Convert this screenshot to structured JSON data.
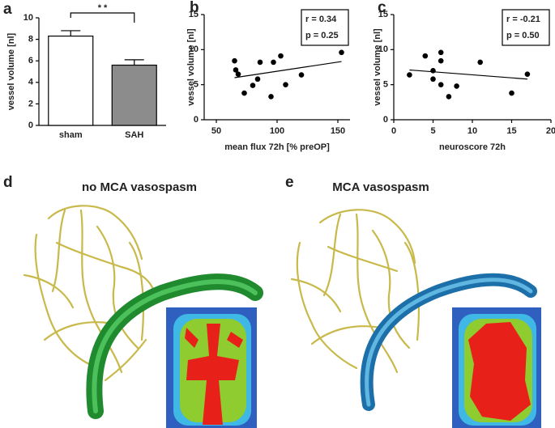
{
  "chart_data": [
    {
      "type": "bar",
      "panel": "a",
      "ylabel": "vessel volume [nl]",
      "categories": [
        "sham",
        "SAH"
      ],
      "values": [
        8.3,
        5.6
      ],
      "errors": [
        0.5,
        0.5
      ],
      "colors": [
        "#ffffff",
        "#8c8c8c"
      ],
      "ylim": [
        0,
        10
      ],
      "yticks": [
        0,
        2,
        4,
        6,
        8,
        10
      ],
      "annotation": "* *"
    },
    {
      "type": "scatter",
      "panel": "b",
      "ylabel": "vessel volume [nl]",
      "xlabel": "mean flux 72h [% preOP]",
      "x": [
        65,
        66,
        68,
        73,
        80,
        84,
        86,
        95,
        97,
        103,
        107,
        120,
        153
      ],
      "y": [
        8.4,
        7.1,
        6.5,
        3.8,
        4.9,
        5.8,
        8.2,
        3.3,
        8.2,
        9.1,
        5.0,
        6.4,
        9.6
      ],
      "color": "#000000",
      "trend_line": {
        "x": [
          65,
          153
        ],
        "y": [
          6.0,
          8.3
        ]
      },
      "stats": [
        "r = 0.34",
        "p = 0.25"
      ],
      "xlim": [
        40,
        160
      ],
      "xticks": [
        50,
        100,
        150
      ],
      "ylim": [
        0,
        15
      ],
      "yticks": [
        0,
        5,
        10,
        15
      ]
    },
    {
      "type": "scatter",
      "panel": "c",
      "ylabel": "vessel volume [nl]",
      "xlabel": "neuroscore 72h",
      "x": [
        2,
        4,
        5,
        5,
        6,
        6,
        6,
        7,
        8,
        11,
        15,
        17
      ],
      "y": [
        6.4,
        9.1,
        7.0,
        5.8,
        9.6,
        8.4,
        5.0,
        3.3,
        4.8,
        8.2,
        3.8,
        6.5
      ],
      "color": "#000000",
      "trend_line": {
        "x": [
          2,
          17
        ],
        "y": [
          7.1,
          5.8
        ]
      },
      "stats": [
        "r = -0.21",
        "p = 0.50"
      ],
      "xlim": [
        0,
        20
      ],
      "xticks": [
        0,
        5,
        10,
        15,
        20
      ],
      "ylim": [
        0,
        15
      ],
      "yticks": [
        0,
        5,
        10,
        15
      ]
    }
  ],
  "image_panels": [
    {
      "label": "d",
      "title": "no MCA vasospasm"
    },
    {
      "label": "e",
      "title": "MCA vasospasm"
    }
  ]
}
